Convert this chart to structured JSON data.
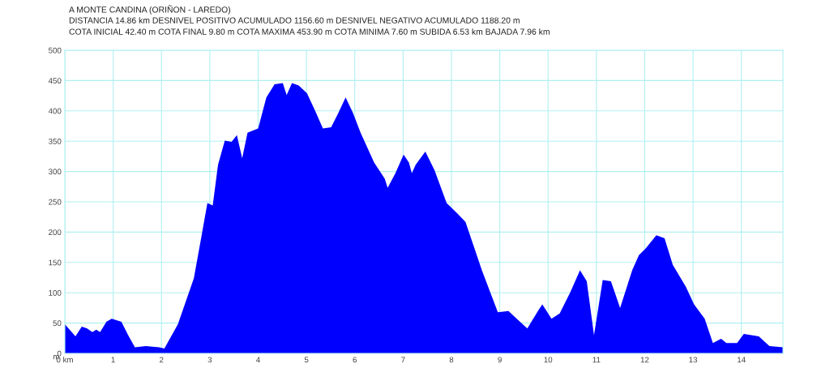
{
  "chart_data": {
    "type": "area",
    "title": "A MONTE CANDINA (ORIÑON - LAREDO)",
    "subtitle": "DISTANCIA 14.86 km DESNIVEL POSITIVO ACUMULADO 1156.60 m DESNIVEL NEGATIVO ACUMULADO 1188.20 m",
    "annotations": [
      "COTA INICIAL 42.40 m COTA FINAL 9.80 m COTA MAXIMA 453.90 m COTA MINIMA 7.60 m SUBIDA 6.53 km BAJADA 7.96 km"
    ],
    "ylabel": "m",
    "x": [
      0,
      0.22,
      0.35,
      0.46,
      0.57,
      0.65,
      0.73,
      0.86,
      0.97,
      1.17,
      1.31,
      1.45,
      1.68,
      1.95,
      2.06,
      2.34,
      2.67,
      2.84,
      2.95,
      3.06,
      3.17,
      3.31,
      3.45,
      3.56,
      3.67,
      3.78,
      4.0,
      4.17,
      4.34,
      4.51,
      4.59,
      4.7,
      4.84,
      5.01,
      5.18,
      5.34,
      5.51,
      5.65,
      5.81,
      5.96,
      6.12,
      6.4,
      6.62,
      6.68,
      6.84,
      7.01,
      7.12,
      7.18,
      7.26,
      7.46,
      7.65,
      7.9,
      8.12,
      8.29,
      8.46,
      8.63,
      8.96,
      9.18,
      9.35,
      9.57,
      9.79,
      9.88,
      10.07,
      10.24,
      10.46,
      10.66,
      10.8,
      10.95,
      11.13,
      11.3,
      11.49,
      11.74,
      11.88,
      12.02,
      12.24,
      12.41,
      12.58,
      12.85,
      13.02,
      13.24,
      13.41,
      13.58,
      13.69,
      13.91,
      14.05,
      14.36,
      14.58,
      14.86
    ],
    "series": [
      {
        "color": "#0000ff",
        "values": [
          48,
          28,
          44,
          41,
          35,
          39,
          35,
          52,
          57,
          52,
          30,
          10,
          12,
          10,
          8,
          48,
          124,
          199,
          248,
          244,
          311,
          351,
          349,
          360,
          322,
          364,
          371,
          422,
          444,
          446,
          426,
          446,
          442,
          429,
          400,
          371,
          373,
          395,
          422,
          397,
          364,
          315,
          288,
          273,
          297,
          328,
          315,
          297,
          311,
          333,
          302,
          248,
          231,
          217,
          177,
          137,
          68,
          70,
          57,
          41,
          70,
          81,
          57,
          66,
          101,
          137,
          119,
          30,
          121,
          119,
          75,
          137,
          162,
          173,
          195,
          190,
          146,
          110,
          81,
          57,
          17,
          24,
          17,
          17,
          32,
          28,
          12,
          10
        ]
      }
    ],
    "xlim": [
      0,
      14.86
    ],
    "xticks": [
      {
        "value": 0,
        "label": "0 km"
      },
      1,
      2,
      3,
      4,
      5,
      6,
      7,
      8,
      9,
      10,
      11,
      12,
      13,
      14
    ],
    "ylim": [
      0,
      500
    ],
    "yticks": [
      0,
      50,
      100,
      150,
      200,
      250,
      300,
      350,
      400,
      450,
      500
    ],
    "grid": true
  }
}
